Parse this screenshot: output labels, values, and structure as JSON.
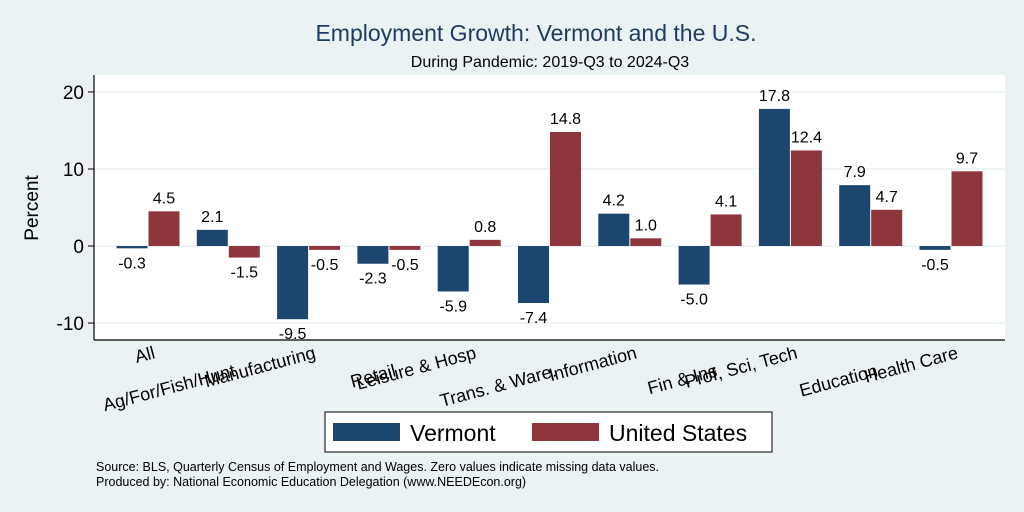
{
  "chart_data": {
    "type": "bar",
    "title": "Employment Growth: Vermont and the U.S.",
    "subtitle": "During Pandemic: 2019-Q3 to 2024-Q3",
    "xlabel": "",
    "ylabel": "Percent",
    "ylim": [
      -12.2,
      22.2
    ],
    "yticks": [
      -10,
      0,
      10,
      20
    ],
    "ytick_labels": [
      "-10",
      "0",
      "10",
      "20"
    ],
    "grid": true,
    "categories": [
      "All",
      "Ag/For/Fish/Hunt",
      "Manufacturing",
      "Retail",
      "Leisure & Hosp",
      "Trans. & Ware.",
      "Information",
      "Fin & Ins",
      "Prof, Sci, Tech",
      "Education",
      "Health Care"
    ],
    "series": [
      {
        "name": "Vermont",
        "color": "#1c466e",
        "values": [
          -0.3,
          2.1,
          -9.5,
          -2.3,
          -5.9,
          -7.4,
          4.2,
          -5.0,
          17.8,
          7.9,
          -0.5
        ],
        "labels": [
          "-0.3",
          "2.1",
          "-9.5",
          "-2.3",
          "-5.9",
          "-7.4",
          "4.2",
          "-5.0",
          "17.8",
          "7.9",
          "-0.5"
        ]
      },
      {
        "name": "United States",
        "color": "#8f353c",
        "values": [
          4.5,
          -1.5,
          -0.5,
          -0.5,
          0.8,
          14.8,
          1.0,
          4.1,
          12.4,
          4.7,
          9.7
        ],
        "labels": [
          "4.5",
          "-1.5",
          "-0.5",
          "-0.5",
          "0.8",
          "14.8",
          "1.0",
          "4.1",
          "12.4",
          "4.7",
          "9.7"
        ]
      }
    ],
    "legend_position": "bottom",
    "notes": [
      "Source: BLS, Quarterly Census of Employment and Wages. Zero values indicate missing data values.",
      "Produced by: National Economic Education Delegation (www.NEEDEcon.org)"
    ]
  }
}
